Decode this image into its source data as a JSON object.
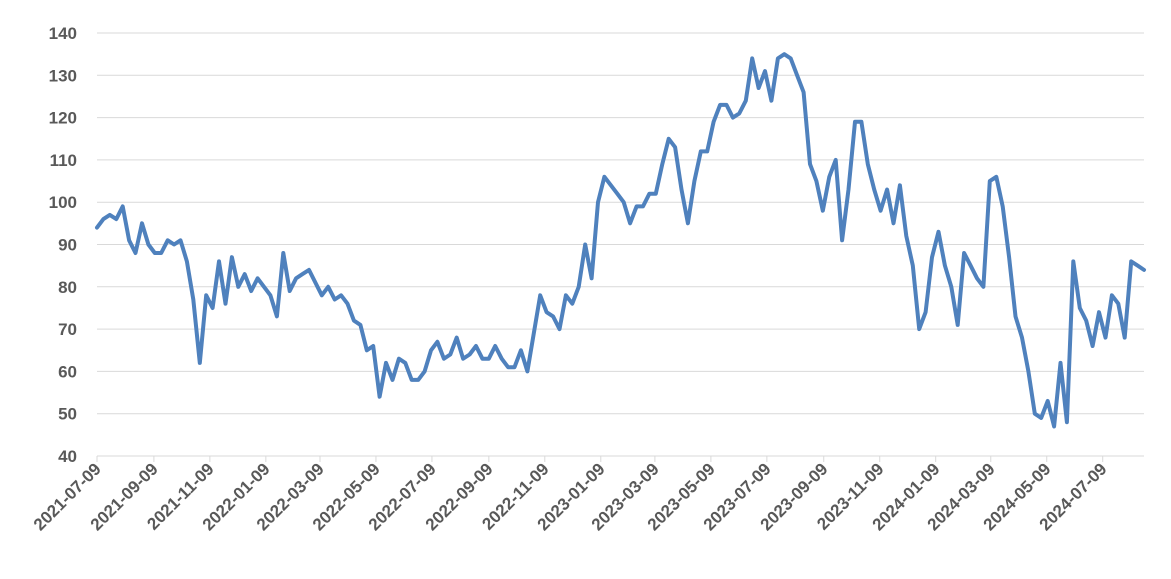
{
  "colors": {
    "series": "#4f81bd",
    "grid": "#d9d9d9",
    "tick": "#595959"
  },
  "chart_data": {
    "type": "line",
    "title": "",
    "xlabel": "",
    "ylabel": "",
    "ylim": [
      40,
      140
    ],
    "yticks": [
      40,
      50,
      60,
      70,
      80,
      90,
      100,
      110,
      120,
      130,
      140
    ],
    "xlim": [
      "2021-07-09",
      "2024-08-23"
    ],
    "xticks": [
      "2021-07-09",
      "2021-09-09",
      "2021-11-09",
      "2022-01-09",
      "2022-03-09",
      "2022-05-09",
      "2022-07-09",
      "2022-09-09",
      "2022-11-09",
      "2023-01-09",
      "2023-03-09",
      "2023-05-09",
      "2023-07-09",
      "2023-09-09",
      "2023-11-09",
      "2024-01-09",
      "2024-03-09",
      "2024-05-09",
      "2024-07-09"
    ],
    "grid": true,
    "legend": "none",
    "series": [
      {
        "points": [
          [
            "2021-07-09",
            94
          ],
          [
            "2021-07-16",
            96
          ],
          [
            "2021-07-23",
            97
          ],
          [
            "2021-07-30",
            96
          ],
          [
            "2021-08-06",
            99
          ],
          [
            "2021-08-13",
            91
          ],
          [
            "2021-08-20",
            88
          ],
          [
            "2021-08-27",
            95
          ],
          [
            "2021-09-03",
            90
          ],
          [
            "2021-09-10",
            88
          ],
          [
            "2021-09-17",
            88
          ],
          [
            "2021-09-24",
            91
          ],
          [
            "2021-10-01",
            90
          ],
          [
            "2021-10-08",
            91
          ],
          [
            "2021-10-15",
            86
          ],
          [
            "2021-10-22",
            77
          ],
          [
            "2021-10-29",
            62
          ],
          [
            "2021-11-05",
            78
          ],
          [
            "2021-11-12",
            75
          ],
          [
            "2021-11-19",
            86
          ],
          [
            "2021-11-26",
            76
          ],
          [
            "2021-12-03",
            87
          ],
          [
            "2021-12-10",
            80
          ],
          [
            "2021-12-17",
            83
          ],
          [
            "2021-12-24",
            79
          ],
          [
            "2021-12-31",
            82
          ],
          [
            "2022-01-07",
            80
          ],
          [
            "2022-01-14",
            78
          ],
          [
            "2022-01-21",
            73
          ],
          [
            "2022-01-28",
            88
          ],
          [
            "2022-02-04",
            79
          ],
          [
            "2022-02-11",
            82
          ],
          [
            "2022-02-18",
            83
          ],
          [
            "2022-02-25",
            84
          ],
          [
            "2022-03-04",
            81
          ],
          [
            "2022-03-11",
            78
          ],
          [
            "2022-03-18",
            80
          ],
          [
            "2022-03-25",
            77
          ],
          [
            "2022-04-01",
            78
          ],
          [
            "2022-04-08",
            76
          ],
          [
            "2022-04-15",
            72
          ],
          [
            "2022-04-22",
            71
          ],
          [
            "2022-04-29",
            65
          ],
          [
            "2022-05-06",
            66
          ],
          [
            "2022-05-13",
            54
          ],
          [
            "2022-05-20",
            62
          ],
          [
            "2022-05-27",
            58
          ],
          [
            "2022-06-03",
            63
          ],
          [
            "2022-06-10",
            62
          ],
          [
            "2022-06-17",
            58
          ],
          [
            "2022-06-24",
            58
          ],
          [
            "2022-07-01",
            60
          ],
          [
            "2022-07-08",
            65
          ],
          [
            "2022-07-15",
            67
          ],
          [
            "2022-07-22",
            63
          ],
          [
            "2022-07-29",
            64
          ],
          [
            "2022-08-05",
            68
          ],
          [
            "2022-08-12",
            63
          ],
          [
            "2022-08-19",
            64
          ],
          [
            "2022-08-26",
            66
          ],
          [
            "2022-09-02",
            63
          ],
          [
            "2022-09-09",
            63
          ],
          [
            "2022-09-16",
            66
          ],
          [
            "2022-09-23",
            63
          ],
          [
            "2022-09-30",
            61
          ],
          [
            "2022-10-07",
            61
          ],
          [
            "2022-10-14",
            65
          ],
          [
            "2022-10-21",
            60
          ],
          [
            "2022-10-28",
            69
          ],
          [
            "2022-11-04",
            78
          ],
          [
            "2022-11-11",
            74
          ],
          [
            "2022-11-18",
            73
          ],
          [
            "2022-11-25",
            70
          ],
          [
            "2022-12-02",
            78
          ],
          [
            "2022-12-09",
            76
          ],
          [
            "2022-12-16",
            80
          ],
          [
            "2022-12-23",
            90
          ],
          [
            "2022-12-30",
            82
          ],
          [
            "2023-01-06",
            100
          ],
          [
            "2023-01-13",
            106
          ],
          [
            "2023-01-20",
            104
          ],
          [
            "2023-01-27",
            102
          ],
          [
            "2023-02-03",
            100
          ],
          [
            "2023-02-10",
            95
          ],
          [
            "2023-02-17",
            99
          ],
          [
            "2023-02-24",
            99
          ],
          [
            "2023-03-03",
            102
          ],
          [
            "2023-03-10",
            102
          ],
          [
            "2023-03-17",
            109
          ],
          [
            "2023-03-24",
            115
          ],
          [
            "2023-03-31",
            113
          ],
          [
            "2023-04-07",
            103
          ],
          [
            "2023-04-14",
            95
          ],
          [
            "2023-04-21",
            105
          ],
          [
            "2023-04-28",
            112
          ],
          [
            "2023-05-05",
            112
          ],
          [
            "2023-05-12",
            119
          ],
          [
            "2023-05-19",
            123
          ],
          [
            "2023-05-26",
            123
          ],
          [
            "2023-06-02",
            120
          ],
          [
            "2023-06-09",
            121
          ],
          [
            "2023-06-16",
            124
          ],
          [
            "2023-06-23",
            134
          ],
          [
            "2023-06-30",
            127
          ],
          [
            "2023-07-07",
            131
          ],
          [
            "2023-07-14",
            124
          ],
          [
            "2023-07-21",
            134
          ],
          [
            "2023-07-28",
            135
          ],
          [
            "2023-08-04",
            134
          ],
          [
            "2023-08-11",
            130
          ],
          [
            "2023-08-18",
            126
          ],
          [
            "2023-08-25",
            109
          ],
          [
            "2023-09-01",
            105
          ],
          [
            "2023-09-08",
            98
          ],
          [
            "2023-09-15",
            106
          ],
          [
            "2023-09-22",
            110
          ],
          [
            "2023-09-29",
            91
          ],
          [
            "2023-10-06",
            103
          ],
          [
            "2023-10-13",
            119
          ],
          [
            "2023-10-20",
            119
          ],
          [
            "2023-10-27",
            109
          ],
          [
            "2023-11-03",
            103
          ],
          [
            "2023-11-10",
            98
          ],
          [
            "2023-11-17",
            103
          ],
          [
            "2023-11-24",
            95
          ],
          [
            "2023-12-01",
            104
          ],
          [
            "2023-12-08",
            92
          ],
          [
            "2023-12-15",
            85
          ],
          [
            "2023-12-22",
            70
          ],
          [
            "2023-12-29",
            74
          ],
          [
            "2024-01-05",
            87
          ],
          [
            "2024-01-12",
            93
          ],
          [
            "2024-01-19",
            85
          ],
          [
            "2024-01-26",
            80
          ],
          [
            "2024-02-02",
            71
          ],
          [
            "2024-02-09",
            88
          ],
          [
            "2024-02-16",
            85
          ],
          [
            "2024-02-23",
            82
          ],
          [
            "2024-03-01",
            80
          ],
          [
            "2024-03-08",
            105
          ],
          [
            "2024-03-15",
            106
          ],
          [
            "2024-03-22",
            99
          ],
          [
            "2024-03-29",
            87
          ],
          [
            "2024-04-05",
            73
          ],
          [
            "2024-04-12",
            68
          ],
          [
            "2024-04-19",
            60
          ],
          [
            "2024-04-26",
            50
          ],
          [
            "2024-05-03",
            49
          ],
          [
            "2024-05-10",
            53
          ],
          [
            "2024-05-17",
            47
          ],
          [
            "2024-05-24",
            62
          ],
          [
            "2024-05-31",
            48
          ],
          [
            "2024-06-07",
            86
          ],
          [
            "2024-06-14",
            75
          ],
          [
            "2024-06-21",
            72
          ],
          [
            "2024-06-28",
            66
          ],
          [
            "2024-07-05",
            74
          ],
          [
            "2024-07-12",
            68
          ],
          [
            "2024-07-19",
            78
          ],
          [
            "2024-07-26",
            76
          ],
          [
            "2024-08-02",
            68
          ],
          [
            "2024-08-09",
            86
          ],
          [
            "2024-08-16",
            85
          ],
          [
            "2024-08-23",
            84
          ]
        ]
      }
    ]
  }
}
